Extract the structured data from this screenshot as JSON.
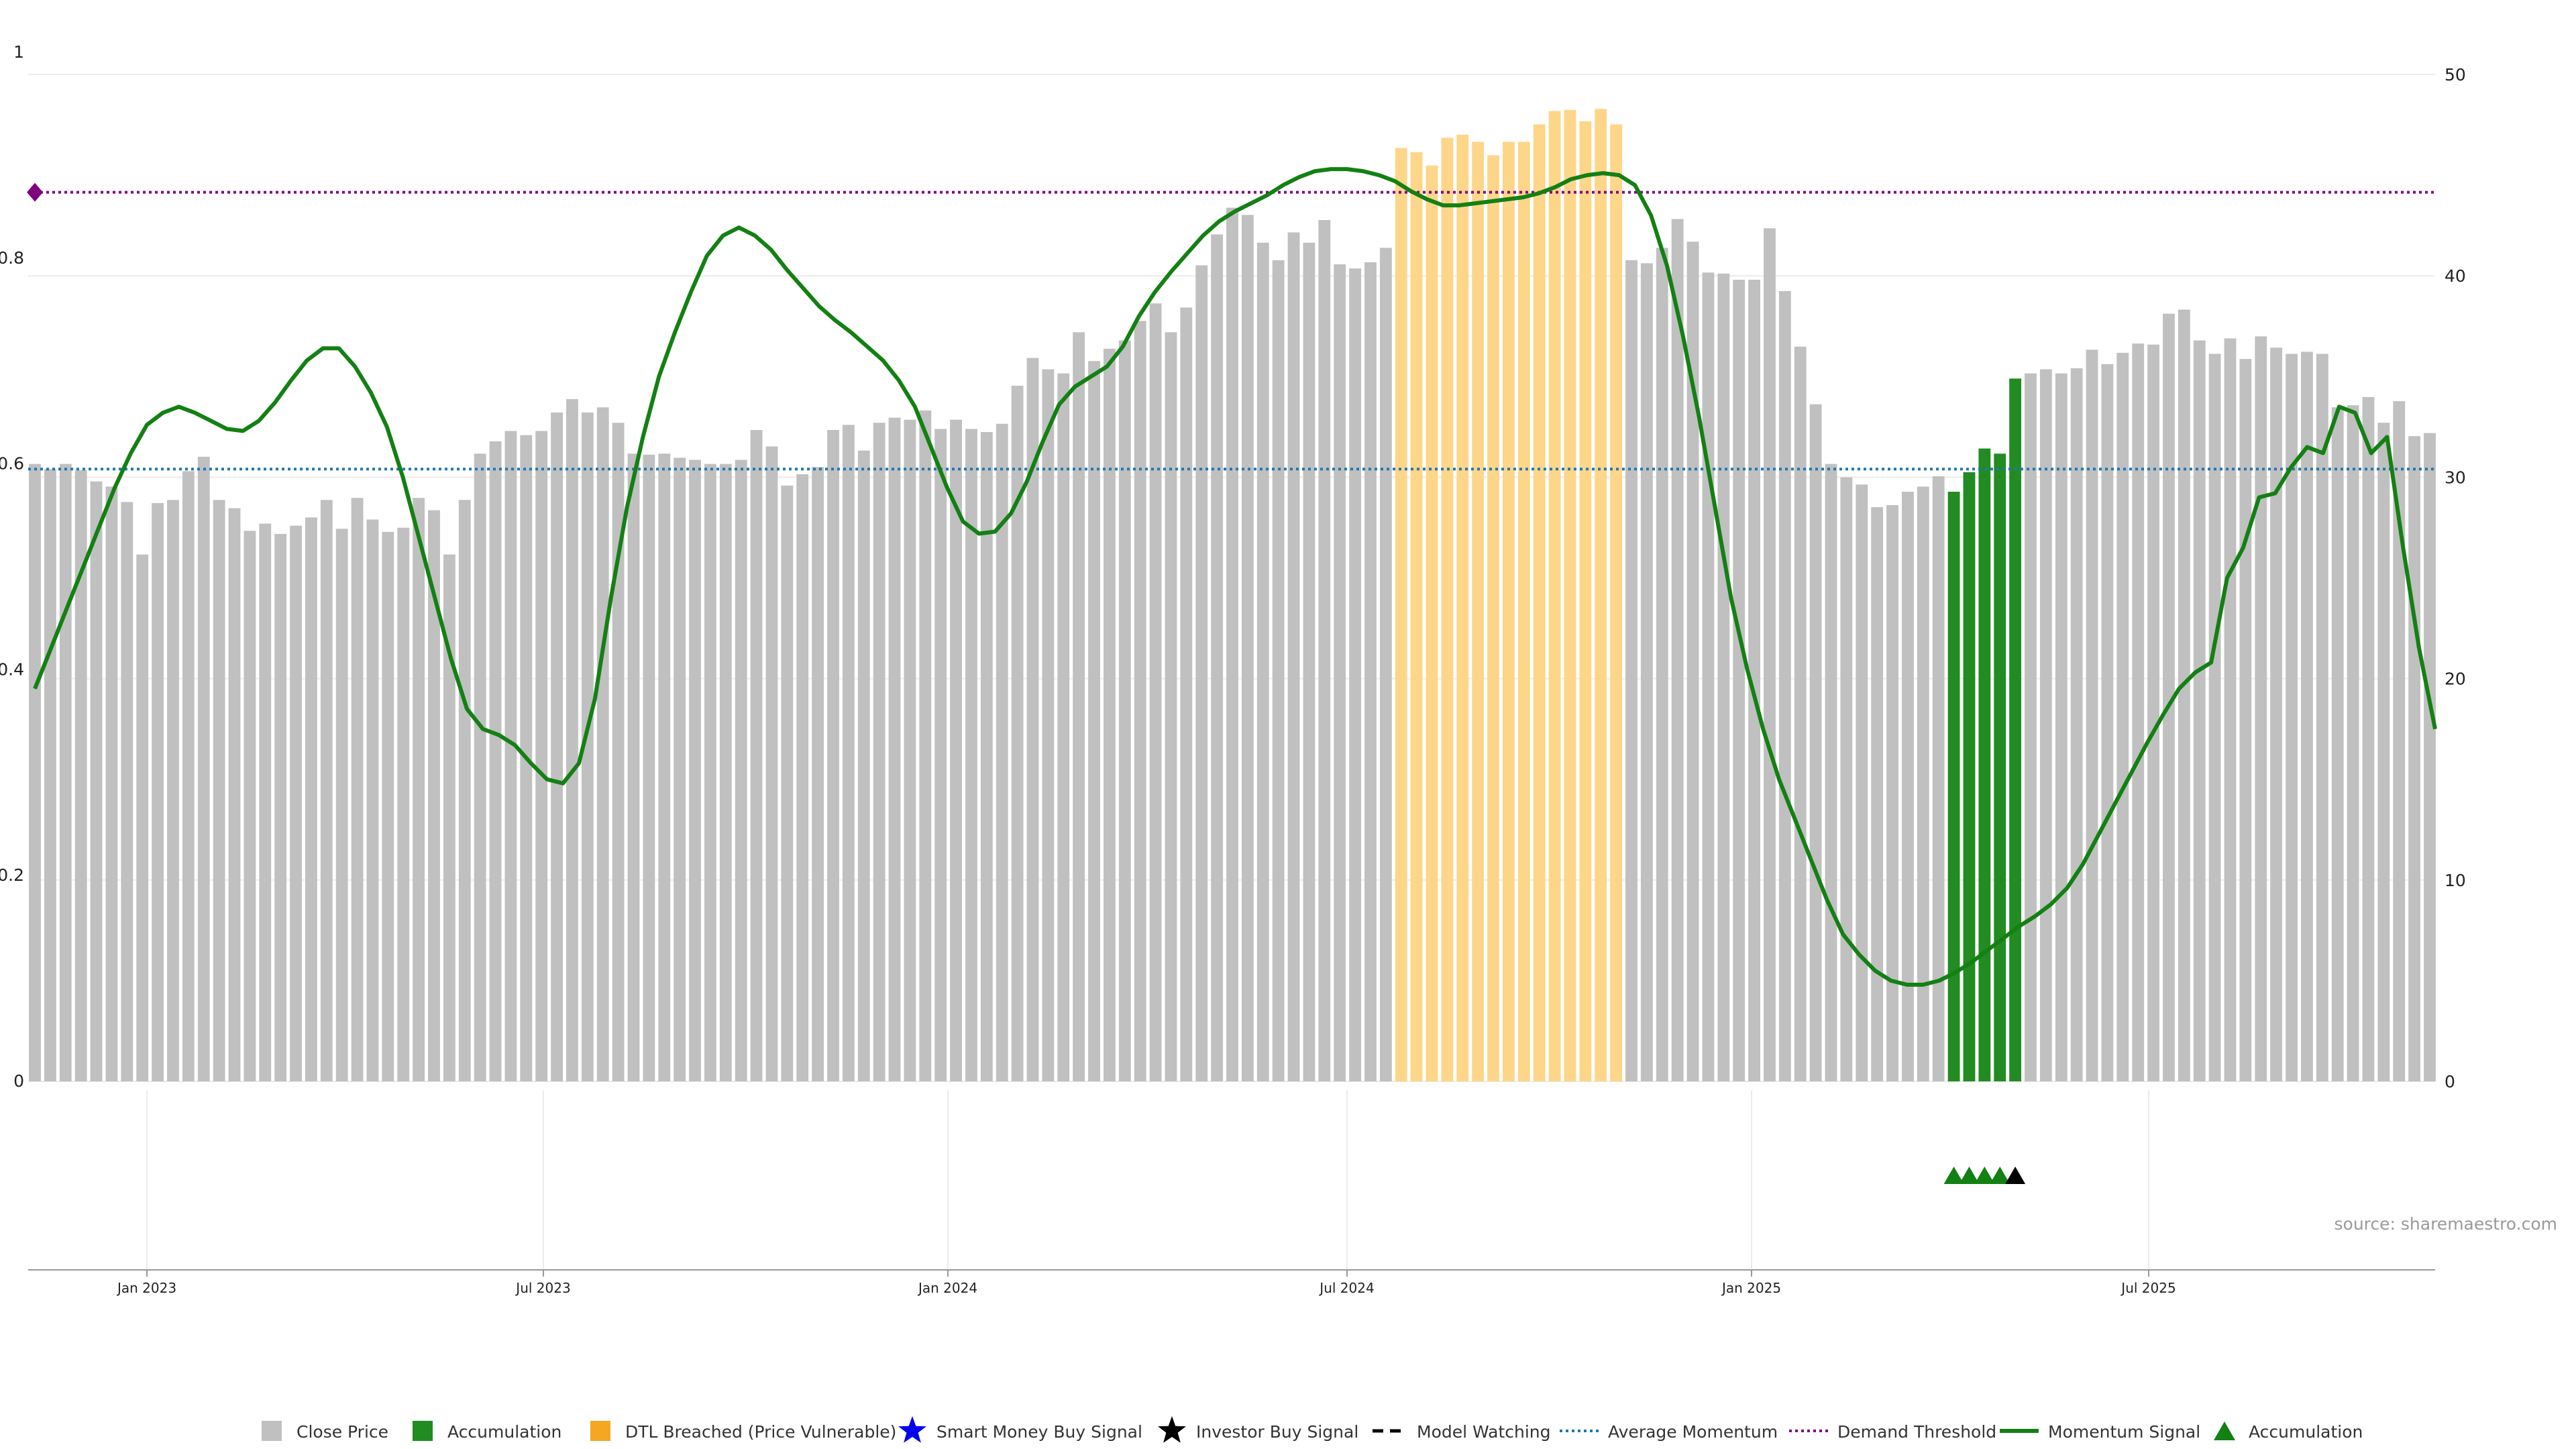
{
  "chart_data": {
    "type": "bar",
    "source": "source: sharemaestro.com",
    "left_axis": {
      "ylim": [
        0,
        1
      ],
      "ticks": [
        "0",
        "0.2",
        "0.4",
        "0.6",
        "0.8",
        "1"
      ]
    },
    "right_axis": {
      "ylim": [
        0,
        50
      ],
      "ticks": [
        "0",
        "10",
        "20",
        "30",
        "40",
        "50"
      ]
    },
    "x_ticks": [
      "Jan 2023",
      "Jul 2023",
      "Jan 2024",
      "Jul 2024",
      "Jan 2025",
      "Jul 2025"
    ],
    "reference_lines": {
      "average_momentum": 0.595,
      "demand_threshold": 0.864
    },
    "close_price": [
      0.6,
      0.595,
      0.6,
      0.594,
      0.583,
      0.578,
      0.563,
      0.512,
      0.562,
      0.565,
      0.593,
      0.607,
      0.565,
      0.557,
      0.535,
      0.542,
      0.532,
      0.54,
      0.548,
      0.565,
      0.537,
      0.567,
      0.546,
      0.534,
      0.538,
      0.567,
      0.555,
      0.512,
      0.565,
      0.61,
      0.622,
      0.632,
      0.628,
      0.632,
      0.65,
      0.663,
      0.65,
      0.655,
      0.64,
      0.61,
      0.609,
      0.61,
      0.606,
      0.604,
      0.6,
      0.6,
      0.604,
      0.633,
      0.617,
      0.579,
      0.59,
      0.597,
      0.633,
      0.638,
      0.613,
      0.64,
      0.645,
      0.643,
      0.652,
      0.634,
      0.643,
      0.634,
      0.631,
      0.639,
      0.676,
      0.703,
      0.692,
      0.688,
      0.728,
      0.7,
      0.712,
      0.72,
      0.739,
      0.756,
      0.728,
      0.752,
      0.793,
      0.823,
      0.849,
      0.842,
      0.815,
      0.798,
      0.825,
      0.815,
      0.837,
      0.794,
      0.79,
      0.796,
      0.81,
      0.907,
      0.903,
      0.89,
      0.917,
      0.92,
      0.913,
      0.9,
      0.913,
      0.913,
      0.93,
      0.943,
      0.944,
      0.933,
      0.945,
      0.93,
      0.798,
      0.795,
      0.81,
      0.838,
      0.816,
      0.786,
      0.785,
      0.779,
      0.779,
      0.829,
      0.768,
      0.714,
      0.658,
      0.6,
      0.587,
      0.58,
      0.558,
      0.56,
      0.573,
      0.578,
      0.588,
      0.573,
      0.592,
      0.615,
      0.61,
      0.683,
      0.688,
      0.692,
      0.688,
      0.693,
      0.711,
      0.697,
      0.708,
      0.717,
      0.716,
      0.746,
      0.75,
      0.72,
      0.707,
      0.722,
      0.702,
      0.724,
      0.713,
      0.707,
      0.709,
      0.707,
      0.655,
      0.657,
      0.665,
      0.64,
      0.661,
      0.627,
      0.63
    ],
    "bar_status": [
      "close",
      "close",
      "close",
      "close",
      "close",
      "close",
      "close",
      "close",
      "close",
      "close",
      "close",
      "close",
      "close",
      "close",
      "close",
      "close",
      "close",
      "close",
      "close",
      "close",
      "close",
      "close",
      "close",
      "close",
      "close",
      "close",
      "close",
      "close",
      "close",
      "close",
      "close",
      "close",
      "close",
      "close",
      "close",
      "close",
      "close",
      "close",
      "close",
      "close",
      "close",
      "close",
      "close",
      "close",
      "close",
      "close",
      "close",
      "close",
      "close",
      "close",
      "close",
      "close",
      "close",
      "close",
      "close",
      "close",
      "close",
      "close",
      "close",
      "close",
      "close",
      "close",
      "close",
      "close",
      "close",
      "close",
      "close",
      "close",
      "close",
      "close",
      "close",
      "close",
      "close",
      "close",
      "close",
      "close",
      "close",
      "close",
      "close",
      "close",
      "close",
      "close",
      "close",
      "close",
      "close",
      "close",
      "close",
      "close",
      "close",
      "dtl",
      "dtl",
      "dtl",
      "dtl",
      "dtl",
      "dtl",
      "dtl",
      "dtl",
      "dtl",
      "dtl",
      "dtl",
      "dtl",
      "dtl",
      "dtl",
      "dtl",
      "close",
      "close",
      "close",
      "close",
      "close",
      "close",
      "close",
      "close",
      "close",
      "close",
      "close",
      "close",
      "close",
      "close",
      "close",
      "close",
      "close",
      "close",
      "close",
      "close",
      "close",
      "accum",
      "accum",
      "accum",
      "accum",
      "accum",
      "close",
      "close",
      "close",
      "close",
      "close",
      "close",
      "close",
      "close",
      "close",
      "close",
      "close",
      "close",
      "close",
      "close",
      "close",
      "close",
      "close",
      "close",
      "close",
      "close",
      "close",
      "close",
      "close",
      "close",
      "close",
      "close",
      "close"
    ],
    "momentum_signal": [
      19.5,
      21.5,
      23.5,
      25.5,
      27.5,
      29.5,
      31.2,
      32.6,
      33.2,
      33.5,
      33.2,
      32.8,
      32.4,
      32.3,
      32.8,
      33.7,
      34.8,
      35.8,
      36.4,
      36.4,
      35.5,
      34.2,
      32.5,
      30.0,
      27.0,
      24.0,
      21.0,
      18.5,
      17.5,
      17.2,
      16.7,
      15.8,
      15.0,
      14.8,
      15.8,
      19.0,
      24.0,
      28.5,
      32.0,
      35.0,
      37.2,
      39.2,
      41.0,
      42.0,
      42.4,
      42.0,
      41.3,
      40.3,
      39.4,
      38.5,
      37.8,
      37.2,
      36.5,
      35.8,
      34.8,
      33.5,
      31.5,
      29.5,
      27.8,
      27.2,
      27.3,
      28.2,
      29.8,
      31.8,
      33.6,
      34.5,
      35.0,
      35.5,
      36.5,
      38.0,
      39.2,
      40.2,
      41.1,
      42.0,
      42.7,
      43.2,
      43.6,
      44.0,
      44.5,
      44.9,
      45.2,
      45.3,
      45.3,
      45.2,
      45.0,
      44.7,
      44.2,
      43.8,
      43.5,
      43.5,
      43.6,
      43.7,
      43.8,
      43.9,
      44.1,
      44.4,
      44.8,
      45.0,
      45.1,
      45.0,
      44.5,
      43.0,
      40.5,
      37.0,
      33.0,
      28.5,
      24.0,
      20.5,
      17.5,
      15.0,
      13.0,
      11.0,
      9.0,
      7.3,
      6.3,
      5.5,
      5.0,
      4.8,
      4.8,
      5.0,
      5.4,
      5.9,
      6.5,
      7.1,
      7.7,
      8.2,
      8.8,
      9.6,
      10.8,
      12.3,
      13.8,
      15.3,
      16.8,
      18.2,
      19.5,
      20.3,
      20.8,
      25.0,
      26.5,
      29.0,
      29.2,
      30.5,
      31.5,
      31.2,
      33.5,
      33.2,
      31.2,
      32.0,
      26.5,
      21.5,
      17.5
    ],
    "markers": {
      "demand_threshold_diamond": "start",
      "accumulation_triangles": 4,
      "investor_buy_triangles": 1
    },
    "legend": [
      {
        "label": "Close Price",
        "symbol": "square",
        "color": "#c0c0c0"
      },
      {
        "label": "Accumulation",
        "symbol": "square",
        "color": "#228b22"
      },
      {
        "label": "DTL Breached (Price Vulnerable)",
        "symbol": "square",
        "color": "#f5a623"
      },
      {
        "label": "Smart Money Buy Signal",
        "symbol": "star",
        "color": "#0000ee"
      },
      {
        "label": "Investor Buy Signal",
        "symbol": "star",
        "color": "#000000"
      },
      {
        "label": "Model Watching",
        "symbol": "dash",
        "color": "#000000"
      },
      {
        "label": "Average Momentum",
        "symbol": "dotted",
        "color": "#1f77b4"
      },
      {
        "label": "Demand Threshold",
        "symbol": "dotted",
        "color": "#800080"
      },
      {
        "label": "Momentum Signal",
        "symbol": "line",
        "color": "#138013"
      },
      {
        "label": "Accumulation",
        "symbol": "triangle",
        "color": "#138013"
      }
    ],
    "colors": {
      "close": "#c0c0c0",
      "accum": "#228b22",
      "dtl": "#fdd68a",
      "momentum": "#138013",
      "average_momentum": "#1f77b4",
      "demand_threshold": "#800080",
      "investor_triangle": "#000000"
    },
    "grid": true
  }
}
